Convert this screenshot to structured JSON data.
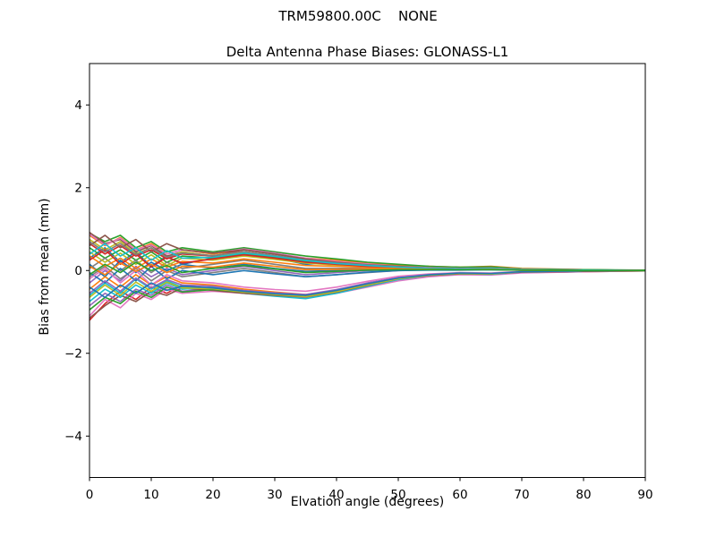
{
  "figure": {
    "suptitle": "TRM59800.00C    NONE",
    "background": "#ffffff"
  },
  "colors": {
    "axis": "#000000",
    "text": "#000000"
  },
  "chart_data": {
    "type": "line",
    "title": "Delta Antenna Phase Biases: GLONASS-L1",
    "xlabel": "Elvation angle (degrees)",
    "ylabel": "Bias from mean (mm)",
    "xlim": [
      0,
      90
    ],
    "ylim": [
      -5,
      5
    ],
    "xticks": [
      0,
      10,
      20,
      30,
      40,
      50,
      60,
      70,
      80,
      90
    ],
    "yticks": [
      -4,
      -2,
      0,
      2,
      4
    ],
    "grid": false,
    "legend": "none",
    "line_width": 1.6,
    "palette": [
      "#1f77b4",
      "#ff7f0e",
      "#2ca02c",
      "#d62728",
      "#9467bd",
      "#8c564b",
      "#e377c2",
      "#7f7f7f",
      "#bcbd22",
      "#17becf"
    ],
    "x": [
      0,
      2.5,
      5,
      7.5,
      10,
      12.5,
      15,
      20,
      25,
      30,
      35,
      40,
      45,
      50,
      55,
      60,
      65,
      70,
      80,
      90
    ],
    "series": [
      {
        "values": [
          0.3,
          0.55,
          0.2,
          0.45,
          0.1,
          0.35,
          0.15,
          0.3,
          0.45,
          0.3,
          0.15,
          0.2,
          0.15,
          0.1,
          0.08,
          0.05,
          0.08,
          0.03,
          0.02,
          0.0
        ]
      },
      {
        "values": [
          0.85,
          0.6,
          0.8,
          0.5,
          0.65,
          0.4,
          0.5,
          0.4,
          0.5,
          0.4,
          0.3,
          0.25,
          0.18,
          0.12,
          0.1,
          0.08,
          0.1,
          0.05,
          0.02,
          0.0
        ]
      },
      {
        "values": [
          0.9,
          0.7,
          0.85,
          0.55,
          0.7,
          0.45,
          0.55,
          0.45,
          0.55,
          0.45,
          0.35,
          0.28,
          0.2,
          0.15,
          0.1,
          0.08,
          0.09,
          0.04,
          0.02,
          0.01
        ]
      },
      {
        "values": [
          -1.2,
          -0.8,
          -0.5,
          -0.7,
          -0.4,
          -0.55,
          -0.35,
          -0.45,
          -0.5,
          -0.55,
          -0.6,
          -0.5,
          -0.35,
          -0.2,
          -0.12,
          -0.08,
          -0.09,
          -0.05,
          -0.03,
          -0.01
        ]
      },
      {
        "values": [
          -0.3,
          0.0,
          -0.25,
          0.1,
          -0.15,
          0.05,
          -0.1,
          0.0,
          0.1,
          0.0,
          -0.1,
          -0.05,
          0.0,
          0.02,
          0.03,
          0.02,
          0.03,
          0.01,
          0.0,
          0.0
        ]
      },
      {
        "values": [
          0.92,
          0.65,
          0.75,
          0.45,
          0.6,
          0.35,
          0.45,
          0.35,
          0.4,
          0.3,
          0.2,
          0.15,
          0.1,
          0.08,
          0.05,
          0.04,
          0.05,
          0.02,
          0.01,
          0.0
        ]
      },
      {
        "values": [
          -1.1,
          -0.7,
          -0.9,
          -0.55,
          -0.7,
          -0.45,
          -0.55,
          -0.5,
          -0.55,
          -0.6,
          -0.65,
          -0.55,
          -0.4,
          -0.25,
          -0.15,
          -0.1,
          -0.11,
          -0.06,
          -0.03,
          -0.01
        ]
      },
      {
        "values": [
          -0.15,
          0.1,
          -0.2,
          0.05,
          -0.25,
          0.0,
          -0.15,
          -0.05,
          0.05,
          -0.05,
          -0.15,
          -0.1,
          -0.05,
          0.0,
          0.02,
          0.02,
          0.02,
          0.01,
          0.0,
          0.0
        ]
      },
      {
        "values": [
          0.75,
          0.5,
          0.7,
          0.4,
          0.55,
          0.3,
          0.45,
          0.35,
          0.45,
          0.35,
          0.25,
          0.2,
          0.15,
          0.1,
          0.07,
          0.05,
          0.06,
          0.03,
          0.01,
          0.0
        ]
      },
      {
        "values": [
          -0.6,
          -0.3,
          -0.55,
          -0.2,
          -0.45,
          -0.25,
          -0.4,
          -0.45,
          -0.55,
          -0.62,
          -0.68,
          -0.55,
          -0.38,
          -0.22,
          -0.12,
          -0.08,
          -0.09,
          -0.04,
          -0.02,
          0.0
        ]
      },
      {
        "values": [
          0.15,
          -0.15,
          0.25,
          -0.05,
          0.2,
          0.0,
          0.15,
          0.05,
          0.15,
          0.05,
          -0.02,
          0.0,
          0.03,
          0.05,
          0.04,
          0.03,
          0.04,
          0.02,
          0.01,
          0.0
        ]
      },
      {
        "values": [
          -0.45,
          -0.15,
          -0.4,
          -0.1,
          -0.35,
          -0.15,
          -0.3,
          -0.35,
          -0.45,
          -0.52,
          -0.58,
          -0.48,
          -0.32,
          -0.18,
          -0.1,
          -0.06,
          -0.07,
          -0.03,
          -0.01,
          0.0
        ]
      },
      {
        "values": [
          0.55,
          0.3,
          0.5,
          0.25,
          0.45,
          0.2,
          0.35,
          0.3,
          0.4,
          0.32,
          0.22,
          0.16,
          0.12,
          0.08,
          0.05,
          0.04,
          0.05,
          0.02,
          0.01,
          0.0
        ]
      },
      {
        "values": [
          0.65,
          0.4,
          0.6,
          0.35,
          0.5,
          0.28,
          0.4,
          0.35,
          0.5,
          0.4,
          0.28,
          0.2,
          0.14,
          0.1,
          0.06,
          0.05,
          0.06,
          0.02,
          0.01,
          0.0
        ]
      },
      {
        "values": [
          -0.85,
          -0.55,
          -0.75,
          -0.45,
          -0.6,
          -0.35,
          -0.5,
          -0.42,
          -0.5,
          -0.55,
          -0.6,
          -0.5,
          -0.35,
          -0.2,
          -0.12,
          -0.07,
          -0.08,
          -0.04,
          -0.02,
          0.0
        ]
      },
      {
        "values": [
          -1.15,
          -0.85,
          -0.6,
          -0.75,
          -0.5,
          -0.6,
          -0.42,
          -0.48,
          -0.55,
          -0.6,
          -0.64,
          -0.52,
          -0.36,
          -0.2,
          -0.12,
          -0.08,
          -0.08,
          -0.04,
          -0.02,
          -0.01
        ]
      },
      {
        "values": [
          0.88,
          0.62,
          0.78,
          0.5,
          0.62,
          0.4,
          0.5,
          0.42,
          0.52,
          0.42,
          0.3,
          0.22,
          0.16,
          0.1,
          0.07,
          0.05,
          0.06,
          0.03,
          0.01,
          0.0
        ]
      },
      {
        "values": [
          0.05,
          0.3,
          0.0,
          0.25,
          -0.05,
          0.2,
          0.05,
          0.15,
          0.25,
          0.15,
          0.05,
          0.05,
          0.06,
          0.05,
          0.04,
          0.03,
          0.04,
          0.02,
          0.01,
          0.0
        ]
      },
      {
        "values": [
          0.45,
          0.2,
          0.42,
          0.15,
          0.38,
          0.12,
          0.3,
          0.25,
          0.35,
          0.27,
          0.18,
          0.13,
          0.1,
          0.07,
          0.05,
          0.03,
          0.04,
          0.02,
          0.01,
          0.0
        ]
      },
      {
        "values": [
          -0.75,
          -0.45,
          -0.65,
          -0.35,
          -0.55,
          -0.3,
          -0.45,
          -0.4,
          -0.5,
          -0.56,
          -0.62,
          -0.5,
          -0.34,
          -0.2,
          -0.11,
          -0.07,
          -0.08,
          -0.03,
          -0.01,
          0.0
        ]
      },
      {
        "values": [
          -0.05,
          -0.3,
          0.05,
          -0.25,
          0.1,
          -0.2,
          0.0,
          -0.1,
          0.0,
          -0.08,
          -0.15,
          -0.1,
          -0.04,
          0.0,
          0.01,
          0.01,
          0.02,
          0.01,
          0.0,
          0.0
        ]
      },
      {
        "values": [
          0.35,
          0.1,
          0.3,
          0.05,
          0.28,
          0.08,
          0.22,
          0.18,
          0.28,
          0.2,
          0.12,
          0.1,
          0.08,
          0.06,
          0.04,
          0.03,
          0.04,
          0.01,
          0.0,
          0.0
        ]
      },
      {
        "values": [
          -0.95,
          -0.65,
          -0.8,
          -0.5,
          -0.65,
          -0.4,
          -0.52,
          -0.46,
          -0.52,
          -0.58,
          -0.62,
          -0.5,
          -0.34,
          -0.19,
          -0.11,
          -0.07,
          -0.08,
          -0.03,
          -0.01,
          0.0
        ]
      },
      {
        "values": [
          0.25,
          0.5,
          0.15,
          0.4,
          0.08,
          0.32,
          0.18,
          0.28,
          0.38,
          0.3,
          0.2,
          0.15,
          0.1,
          0.08,
          0.05,
          0.04,
          0.05,
          0.02,
          0.01,
          0.0
        ]
      },
      {
        "values": [
          -0.55,
          -0.25,
          -0.5,
          -0.18,
          -0.42,
          -0.22,
          -0.35,
          -0.38,
          -0.48,
          -0.54,
          -0.58,
          -0.46,
          -0.3,
          -0.17,
          -0.1,
          -0.06,
          -0.07,
          -0.03,
          -0.01,
          0.0
        ]
      },
      {
        "values": [
          0.6,
          0.85,
          0.55,
          0.75,
          0.45,
          0.65,
          0.5,
          0.42,
          0.5,
          0.4,
          0.28,
          0.2,
          0.14,
          0.1,
          0.06,
          0.04,
          0.05,
          0.02,
          0.01,
          0.0
        ]
      },
      {
        "values": [
          -0.2,
          0.05,
          -0.3,
          0.0,
          -0.35,
          -0.1,
          -0.25,
          -0.3,
          -0.4,
          -0.46,
          -0.5,
          -0.4,
          -0.26,
          -0.14,
          -0.08,
          -0.05,
          -0.06,
          -0.02,
          -0.01,
          0.0
        ]
      },
      {
        "values": [
          0.7,
          0.45,
          0.65,
          0.38,
          0.55,
          0.32,
          0.42,
          0.36,
          0.46,
          0.36,
          0.25,
          0.18,
          0.13,
          0.09,
          0.06,
          0.04,
          0.05,
          0.02,
          0.01,
          0.0
        ]
      },
      {
        "values": [
          -0.65,
          -0.35,
          -0.6,
          -0.28,
          -0.5,
          -0.28,
          -0.42,
          -0.44,
          -0.52,
          -0.58,
          -0.63,
          -0.51,
          -0.35,
          -0.2,
          -0.11,
          -0.07,
          -0.08,
          -0.03,
          -0.01,
          0.0
        ]
      },
      {
        "values": [
          0.4,
          0.65,
          0.35,
          0.55,
          0.25,
          0.48,
          0.3,
          0.32,
          0.42,
          0.34,
          0.24,
          0.17,
          0.12,
          0.08,
          0.05,
          0.04,
          0.05,
          0.02,
          0.01,
          0.0
        ]
      },
      {
        "values": [
          -0.4,
          -0.65,
          -0.35,
          -0.55,
          -0.3,
          -0.48,
          -0.38,
          -0.42,
          -0.5,
          -0.56,
          -0.6,
          -0.48,
          -0.32,
          -0.18,
          -0.1,
          -0.06,
          -0.07,
          -0.03,
          -0.01,
          0.0
        ]
      },
      {
        "values": [
          0.1,
          -0.1,
          0.18,
          -0.02,
          0.15,
          -0.05,
          0.1,
          0.08,
          0.18,
          0.1,
          0.02,
          0.03,
          0.04,
          0.04,
          0.03,
          0.02,
          0.03,
          0.01,
          0.0,
          0.0
        ]
      },
      {
        "values": [
          -0.1,
          0.15,
          -0.05,
          0.2,
          0.0,
          0.12,
          -0.05,
          0.05,
          0.12,
          0.04,
          -0.05,
          -0.02,
          0.01,
          0.02,
          0.02,
          0.02,
          0.02,
          0.01,
          0.0,
          0.0
        ]
      }
    ]
  }
}
